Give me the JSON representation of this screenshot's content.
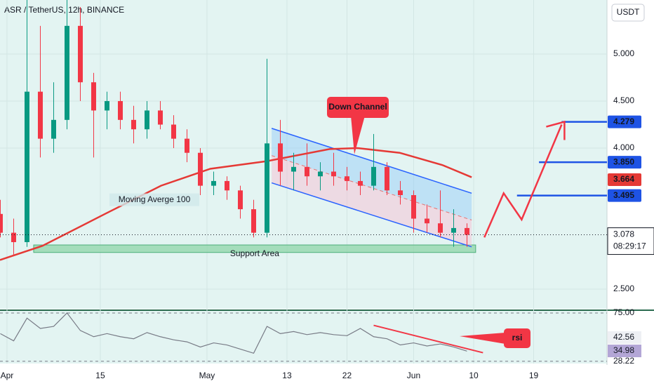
{
  "chart_data": {
    "type": "candlestick",
    "title": "ASR / TetherUS, 12h, BINANCE",
    "currency": "USDT",
    "up_color": "#089981",
    "down_color": "#f23645",
    "x": [
      -1,
      1,
      3,
      5,
      7,
      9,
      11,
      13,
      15,
      17,
      19,
      21,
      23,
      25,
      27,
      29,
      31,
      33,
      35,
      37,
      39,
      41,
      43,
      45,
      47,
      49,
      51,
      53,
      55,
      57,
      59,
      61,
      63,
      65,
      67,
      69
    ],
    "open": [
      3.3,
      3.1,
      3.0,
      4.6,
      4.1,
      4.3,
      5.3,
      4.7,
      4.4,
      4.5,
      4.3,
      4.2,
      4.4,
      4.25,
      4.1,
      3.95,
      3.6,
      3.65,
      3.55,
      3.35,
      3.1,
      4.05,
      3.75,
      3.8,
      3.7,
      3.75,
      3.7,
      3.65,
      3.6,
      3.8,
      3.55,
      3.5,
      3.25,
      3.2,
      3.1,
      3.15
    ],
    "high": [
      3.45,
      3.25,
      5.6,
      5.3,
      4.7,
      5.6,
      5.5,
      4.8,
      4.6,
      4.6,
      4.45,
      4.5,
      4.5,
      4.35,
      4.2,
      4.0,
      3.75,
      3.7,
      3.6,
      3.45,
      4.95,
      4.3,
      3.95,
      4.05,
      3.85,
      3.95,
      3.8,
      3.75,
      4.15,
      3.85,
      3.65,
      3.55,
      3.4,
      3.55,
      3.35,
      3.2
    ],
    "low": [
      3.05,
      2.85,
      2.95,
      3.9,
      3.95,
      4.2,
      4.5,
      3.9,
      4.2,
      4.2,
      4.05,
      4.1,
      4.2,
      4.0,
      3.85,
      3.5,
      3.5,
      3.45,
      3.25,
      3.05,
      3.05,
      3.6,
      3.55,
      3.6,
      3.55,
      3.6,
      3.55,
      3.5,
      3.55,
      3.5,
      3.4,
      3.1,
      3.1,
      3.05,
      2.95,
      2.95
    ],
    "close": [
      3.1,
      3.0,
      4.6,
      4.1,
      4.3,
      5.3,
      4.7,
      4.4,
      4.5,
      4.3,
      4.2,
      4.4,
      4.25,
      4.1,
      3.95,
      3.6,
      3.65,
      3.55,
      3.35,
      3.1,
      4.05,
      3.75,
      3.8,
      3.7,
      3.75,
      3.7,
      3.65,
      3.6,
      3.8,
      3.55,
      3.5,
      3.25,
      3.2,
      3.1,
      3.15,
      3.078
    ],
    "xlim": [
      -1.05,
      90
    ],
    "ylim": [
      2.291,
      5.575
    ],
    "xticks": [
      {
        "value": 0,
        "label": "Apr"
      },
      {
        "value": 14,
        "label": "15"
      },
      {
        "value": 30,
        "label": "May"
      },
      {
        "value": 42,
        "label": "13"
      },
      {
        "value": 51,
        "label": "22"
      },
      {
        "value": 61,
        "label": "Jun"
      },
      {
        "value": 70,
        "label": "10"
      },
      {
        "value": 79,
        "label": "19"
      }
    ],
    "yticks": [
      {
        "value": 5,
        "label": "5.000"
      },
      {
        "value": 4.5,
        "label": "4.500"
      },
      {
        "value": 4,
        "label": "4.000"
      },
      {
        "value": 2.5,
        "label": "2.500"
      }
    ],
    "current_price": 3.078,
    "countdown": "08:29:17",
    "moving_average": {
      "name": "Moving Averge 100",
      "color": "#e53935",
      "last": 3.664,
      "x": [
        -1.05,
        5.3,
        14.7,
        23.1,
        30.5,
        38.9,
        48.4,
        52.6,
        58.9,
        65.3,
        69.7
      ],
      "values": [
        2.81,
        2.96,
        3.3,
        3.6,
        3.78,
        3.86,
        3.99,
        4.0,
        3.95,
        3.82,
        3.69
      ]
    },
    "channel": {
      "label": "Down Channel",
      "x": [
        39.7,
        69.7
      ],
      "upper": [
        4.21,
        3.52
      ],
      "lower": [
        3.63,
        2.95
      ]
    },
    "support": {
      "label": "Support Area",
      "from": 4,
      "to": 70.3,
      "high": 2.97,
      "low": 2.89
    },
    "levels": [
      {
        "value": 4.279,
        "from": 83.2
      },
      {
        "value": 3.85,
        "label": "3.850",
        "from": 79.8
      },
      {
        "value": 3.495,
        "from": 76.5
      }
    ],
    "projection": {
      "x": [
        71.6,
        74.5,
        77.2,
        83.2
      ],
      "values": [
        3.05,
        3.52,
        3.24,
        4.25
      ]
    },
    "rsi": {
      "label": "rsi",
      "ylim": [
        26,
        77
      ],
      "yticks": [
        {
          "value": 75,
          "label": "75.00"
        },
        28.22
      ],
      "values": [
        55,
        48,
        70,
        60,
        62,
        75,
        58,
        52,
        55,
        52,
        50,
        56,
        52,
        49,
        47,
        42,
        46,
        44,
        40,
        36,
        62,
        55,
        57,
        54,
        56,
        54,
        53,
        60,
        52,
        50,
        44,
        46,
        43,
        45,
        42,
        38
      ],
      "last_values": [
        42.56,
        34.98
      ],
      "trend_x": [
        55.0,
        71.4
      ],
      "trend": [
        63.0,
        36.5
      ]
    }
  }
}
